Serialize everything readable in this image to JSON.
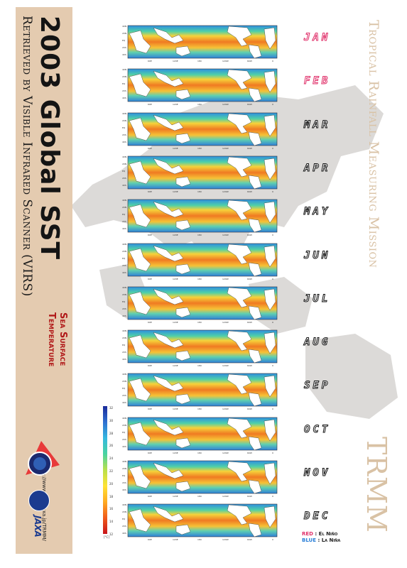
{
  "title": "2003 Global SST",
  "subtitle": "Retrieved by Visible Infrared Scanner (VIRS)",
  "sst_line1": "Sea Surface",
  "sst_line2": "Temperature",
  "url": "http://www.eorc.jaxa.jp/TRMM/",
  "mission": "Tropical Rainfall Measuring Mission",
  "acronym": "TRMM",
  "jaxa_logo_text": "JAXA",
  "months": [
    {
      "label": "JAN",
      "style": "pink"
    },
    {
      "label": "FEB",
      "style": "pink"
    },
    {
      "label": "MAR",
      "style": "black"
    },
    {
      "label": "APR",
      "style": "black"
    },
    {
      "label": "MAY",
      "style": "black"
    },
    {
      "label": "JUN",
      "style": "black"
    },
    {
      "label": "JUL",
      "style": "black"
    },
    {
      "label": "AUG",
      "style": "black"
    },
    {
      "label": "SEP",
      "style": "black"
    },
    {
      "label": "OCT",
      "style": "black"
    },
    {
      "label": "NOV",
      "style": "black"
    },
    {
      "label": "DEC",
      "style": "black"
    }
  ],
  "map_lat_ticks": [
    "40N",
    "20N",
    "EQ",
    "20S",
    "40S"
  ],
  "map_lon_ticks": [
    "60E",
    "120E",
    "180",
    "120W",
    "60W",
    "0"
  ],
  "colorbar": {
    "ticks": [
      "32",
      "30",
      "28",
      "26",
      "24",
      "22",
      "20",
      "18",
      "16",
      "14",
      "12"
    ],
    "unit": "[°C]",
    "colors": [
      "#1a2a9a",
      "#2f6fd0",
      "#35b8e0",
      "#49d3a0",
      "#b9e04a",
      "#ffe234",
      "#ffaa22",
      "#f05a1a",
      "#c8141a"
    ]
  },
  "legend": {
    "red_key": "RED",
    "red_value": ": El Niño",
    "blue_key": "BLUE",
    "blue_value": ": La Niña"
  }
}
